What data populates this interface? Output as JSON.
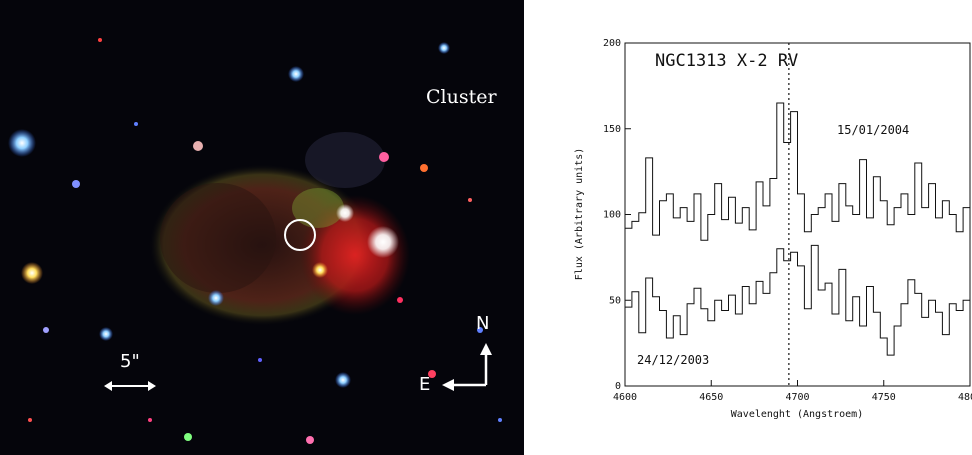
{
  "left_image": {
    "cluster_label": "Cluster",
    "scale_label": "5\"",
    "compass_north": "N",
    "compass_east": "E",
    "colors": {
      "background": "#05050b",
      "nebula_red": "#d42020",
      "nebula_green": "#6a8a20",
      "marker": "#ffffff"
    }
  },
  "chart_data": {
    "type": "line",
    "title": "NGC1313 X-2 RV",
    "xlabel": "Wavelenght (Angstroem)",
    "ylabel": "Flux (Arbitrary units)",
    "xlim": [
      4600,
      4800
    ],
    "ylim": [
      0,
      200
    ],
    "x_ticks": [
      "4600",
      "4650",
      "4700",
      "4750",
      "4800"
    ],
    "y_ticks": [
      "0",
      "50",
      "100",
      "150",
      "200"
    ],
    "vertical_line_x": 4695,
    "annotations": [
      "15/01/2004",
      "24/12/2003"
    ],
    "series": [
      {
        "x": [
          4600,
          4604,
          4608,
          4612,
          4616,
          4620,
          4624,
          4628,
          4632,
          4636,
          4640,
          4644,
          4648,
          4652,
          4656,
          4660,
          4664,
          4668,
          4672,
          4676,
          4680,
          4684,
          4688,
          4692,
          4696,
          4700,
          4704,
          4708,
          4712,
          4716,
          4720,
          4724,
          4728,
          4732,
          4736,
          4740,
          4744,
          4748,
          4752,
          4756,
          4760,
          4764,
          4768,
          4772,
          4776,
          4780,
          4784,
          4788,
          4792,
          4796,
          4800
        ],
        "values": [
          92,
          96,
          101,
          133,
          88,
          108,
          112,
          98,
          104,
          96,
          112,
          85,
          100,
          118,
          97,
          110,
          95,
          104,
          91,
          119,
          105,
          121,
          165,
          142,
          160,
          112,
          90,
          100,
          104,
          112,
          96,
          118,
          105,
          100,
          132,
          98,
          122,
          108,
          94,
          104,
          112,
          100,
          130,
          104,
          118,
          98,
          108,
          100,
          90,
          104,
          95
        ]
      },
      {
        "x": [
          4600,
          4604,
          4608,
          4612,
          4616,
          4620,
          4624,
          4628,
          4632,
          4636,
          4640,
          4644,
          4648,
          4652,
          4656,
          4660,
          4664,
          4668,
          4672,
          4676,
          4680,
          4684,
          4688,
          4692,
          4696,
          4700,
          4704,
          4708,
          4712,
          4716,
          4720,
          4724,
          4728,
          4732,
          4736,
          4740,
          4744,
          4748,
          4752,
          4756,
          4760,
          4764,
          4768,
          4772,
          4776,
          4780,
          4784,
          4788,
          4792,
          4796,
          4800
        ],
        "values": [
          46,
          55,
          31,
          63,
          52,
          44,
          28,
          41,
          30,
          48,
          57,
          45,
          38,
          50,
          44,
          53,
          42,
          58,
          48,
          61,
          54,
          66,
          80,
          73,
          78,
          70,
          45,
          82,
          56,
          60,
          42,
          68,
          38,
          52,
          35,
          58,
          43,
          28,
          18,
          35,
          48,
          62,
          54,
          40,
          50,
          43,
          30,
          48,
          44,
          50,
          46
        ]
      }
    ]
  }
}
